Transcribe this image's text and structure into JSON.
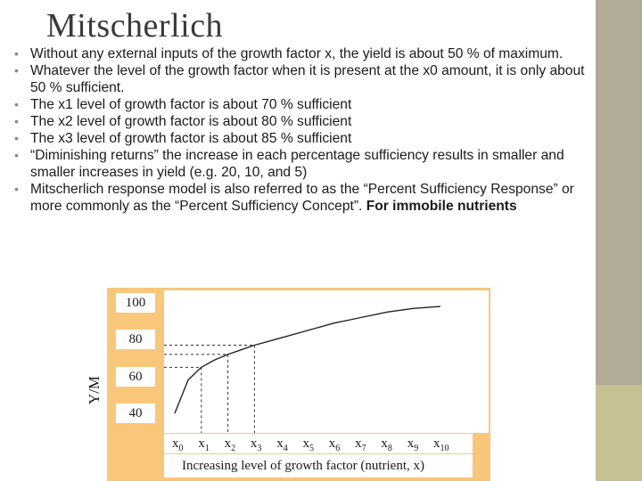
{
  "slide": {
    "title": "Mitscherlich",
    "bullets": [
      "Without any external inputs of the growth factor x, the yield is about 50 % of maximum.",
      "Whatever the level of the growth factor when it is present at the x0 amount, it is only about 50 % sufficient.",
      "The x1 level of growth factor is about 70 % sufficient",
      "The x2 level of growth factor is about 80 % sufficient",
      "The x3 level of growth factor is about 85 % sufficient",
      "“Diminishing returns” the increase in each percentage sufficiency results in smaller and smaller increases in yield (e.g. 20, 10, and 5)",
      "Mitscherlich response model is also referred to as the “Percent Sufficiency Response” or more commonly as the “Percent Sufficiency Concept”."
    ],
    "last_bullet_bold": "For immobile nutrients",
    "colors": {
      "sidebar": "#b1ab98",
      "sidebar_accent": "#c6c093",
      "chart_panel": "#f8c779"
    }
  },
  "chart_data": {
    "type": "line",
    "ylabel": "Y/M",
    "xlabel": "Increasing level of growth factor (nutrient, x)",
    "y_ticks": [
      "100",
      "80",
      "60",
      "40"
    ],
    "x_ticks": [
      {
        "base": "x",
        "sub": "0"
      },
      {
        "base": "x",
        "sub": "1"
      },
      {
        "base": "x",
        "sub": "2"
      },
      {
        "base": "x",
        "sub": "3"
      },
      {
        "base": "x",
        "sub": "4"
      },
      {
        "base": "x",
        "sub": "5"
      },
      {
        "base": "x",
        "sub": "6"
      },
      {
        "base": "x",
        "sub": "7"
      },
      {
        "base": "x",
        "sub": "8"
      },
      {
        "base": "x",
        "sub": "9"
      },
      {
        "base": "x",
        "sub": "10"
      }
    ],
    "x": [
      0,
      0.5,
      1,
      1.5,
      2,
      2.5,
      3,
      3.5,
      4,
      5,
      6,
      7,
      8,
      9,
      10
    ],
    "y": [
      40,
      58,
      65,
      69,
      72,
      74.5,
      77,
      79,
      81,
      85,
      89,
      92,
      95,
      97,
      98
    ],
    "reference_lines": [
      {
        "x": 1,
        "y": 65
      },
      {
        "x": 2,
        "y": 72
      },
      {
        "x": 3,
        "y": 77
      }
    ],
    "ylim": [
      35,
      100
    ],
    "xlim": [
      0,
      10
    ],
    "grid": false
  }
}
